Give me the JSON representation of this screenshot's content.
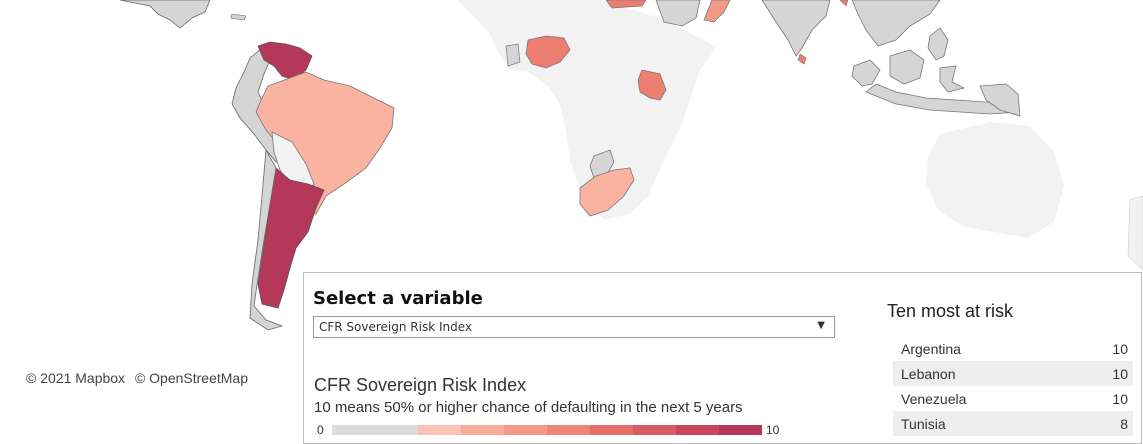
{
  "map": {
    "attribution": [
      "© 2021 Mapbox",
      "© OpenStreetMap"
    ],
    "land_color": "#f2f2f2",
    "no_data_color": "#d5d5d5",
    "risk_colors": {
      "10": "#b5385a",
      "6": "#ec7f72",
      "5": "#f19a85",
      "3": "#f9b3a0"
    },
    "highlighted_countries": [
      {
        "name": "Venezuela",
        "risk": 10
      },
      {
        "name": "Argentina",
        "risk": 10
      },
      {
        "name": "Brazil",
        "risk": 3
      },
      {
        "name": "Nigeria",
        "risk": 6
      },
      {
        "name": "Kenya",
        "risk": 6
      },
      {
        "name": "South Africa",
        "risk": 3
      }
    ]
  },
  "selector": {
    "title": "Select a variable",
    "value": "CFR Sovereign Risk Index"
  },
  "legend": {
    "title": "CFR Sovereign Risk Index",
    "subtitle": "10 means 50% or higher chance of defaulting in the next 5 years",
    "min_label": "0",
    "max_label": "10",
    "colors": [
      "#dcdcdc",
      "#dcdcdc",
      "#fbc3b5",
      "#f8ad9b",
      "#f49985",
      "#ee8475",
      "#e46e69",
      "#d85a63",
      "#c8475d",
      "#b5385a"
    ]
  },
  "top_list": {
    "title": "Ten most at risk",
    "rows": [
      {
        "country": "Argentina",
        "score": "10"
      },
      {
        "country": "Lebanon",
        "score": "10"
      },
      {
        "country": "Venezuela",
        "score": "10"
      },
      {
        "country": "Tunisia",
        "score": "8"
      }
    ]
  }
}
